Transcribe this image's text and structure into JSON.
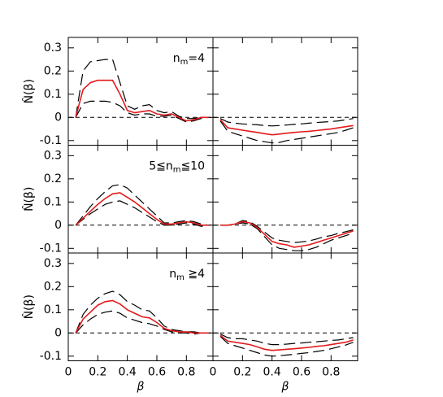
{
  "chart_data": [
    {
      "type": "line",
      "annotation": [
        "n",
        "m",
        "=4"
      ],
      "ylabel": "N̂(β)",
      "x": [
        0.05,
        0.1,
        0.15,
        0.2,
        0.25,
        0.3,
        0.35,
        0.4,
        0.45,
        0.5,
        0.55,
        0.6,
        0.65,
        0.7,
        0.75,
        0.8,
        0.85,
        0.9,
        0.95
      ],
      "series": [
        {
          "color": "#000000",
          "dash": true,
          "values": [
            0,
            0.2,
            0.24,
            0.245,
            0.25,
            0.25,
            0.15,
            0.05,
            0.035,
            0.05,
            0.055,
            0.03,
            0.02,
            0.025,
            0.005,
            -0.005,
            -0.005,
            0,
            0
          ]
        },
        {
          "color": "#000000",
          "dash": true,
          "values": [
            0,
            0.06,
            0.07,
            0.07,
            0.07,
            0.065,
            0.05,
            0.02,
            0.01,
            0.015,
            0.015,
            0.005,
            0.005,
            0.01,
            -0.005,
            -0.02,
            -0.015,
            -0.005,
            0
          ]
        },
        {
          "color": "#e31a1c",
          "dash": false,
          "values": [
            0,
            0.12,
            0.15,
            0.16,
            0.16,
            0.16,
            0.1,
            0.03,
            0.02,
            0.025,
            0.03,
            0.015,
            0.01,
            0.015,
            0,
            -0.015,
            -0.01,
            0,
            0
          ]
        }
      ],
      "hline": 0,
      "xlim": [
        0,
        0.98
      ],
      "ylim": [
        -0.12,
        0.345
      ],
      "xticks": [
        0,
        0.2,
        0.4,
        0.6,
        0.8
      ],
      "yticks": [
        -0.1,
        0,
        0.1,
        0.2,
        0.3
      ],
      "show_xtick_labels": false,
      "show_ytick_labels": true
    },
    {
      "type": "line",
      "x": [
        0.05,
        0.1,
        0.15,
        0.2,
        0.25,
        0.3,
        0.35,
        0.4,
        0.45,
        0.5,
        0.55,
        0.6,
        0.65,
        0.7,
        0.75,
        0.8,
        0.85,
        0.9,
        0.95
      ],
      "series": [
        {
          "color": "#000000",
          "dash": true,
          "values": [
            -0.005,
            -0.02,
            -0.025,
            -0.028,
            -0.03,
            -0.032,
            -0.035,
            -0.037,
            -0.035,
            -0.033,
            -0.03,
            -0.028,
            -0.025,
            -0.022,
            -0.02,
            -0.018,
            -0.015,
            -0.01,
            -0.005
          ]
        },
        {
          "color": "#000000",
          "dash": true,
          "values": [
            -0.015,
            -0.06,
            -0.07,
            -0.08,
            -0.09,
            -0.1,
            -0.105,
            -0.11,
            -0.108,
            -0.1,
            -0.095,
            -0.09,
            -0.085,
            -0.08,
            -0.075,
            -0.07,
            -0.065,
            -0.055,
            -0.045
          ]
        },
        {
          "color": "#e31a1c",
          "dash": false,
          "values": [
            -0.01,
            -0.045,
            -0.05,
            -0.055,
            -0.06,
            -0.065,
            -0.07,
            -0.075,
            -0.072,
            -0.068,
            -0.065,
            -0.062,
            -0.06,
            -0.057,
            -0.053,
            -0.05,
            -0.045,
            -0.04,
            -0.035
          ]
        }
      ],
      "hline": 0,
      "xlim": [
        0,
        0.98
      ],
      "ylim": [
        -0.12,
        0.345
      ],
      "xticks": [
        0,
        0.2,
        0.4,
        0.6,
        0.8
      ],
      "yticks": [
        -0.1,
        0,
        0.1,
        0.2,
        0.3
      ],
      "show_xtick_labels": false,
      "show_ytick_labels": false
    },
    {
      "type": "line",
      "annotation": [
        "5≦n",
        "m",
        "≦10"
      ],
      "ylabel": "N̂(β)",
      "x": [
        0.05,
        0.1,
        0.15,
        0.2,
        0.25,
        0.3,
        0.35,
        0.4,
        0.45,
        0.5,
        0.55,
        0.6,
        0.65,
        0.7,
        0.75,
        0.8,
        0.85,
        0.9,
        0.95
      ],
      "series": [
        {
          "color": "#000000",
          "dash": true,
          "values": [
            0,
            0.04,
            0.08,
            0.115,
            0.145,
            0.17,
            0.175,
            0.16,
            0.13,
            0.1,
            0.07,
            0.04,
            0.01,
            0.01,
            0.015,
            0.02,
            0.015,
            0.005,
            0
          ]
        },
        {
          "color": "#000000",
          "dash": true,
          "values": [
            0,
            0.025,
            0.05,
            0.07,
            0.09,
            0.1,
            0.105,
            0.09,
            0.075,
            0.055,
            0.035,
            0.015,
            0,
            0,
            0.005,
            0.01,
            0.005,
            -0.005,
            0
          ]
        },
        {
          "color": "#e31a1c",
          "dash": false,
          "values": [
            0,
            0.03,
            0.06,
            0.09,
            0.115,
            0.135,
            0.14,
            0.12,
            0.1,
            0.075,
            0.05,
            0.025,
            0.005,
            0.005,
            0.01,
            0.015,
            0.01,
            0,
            0
          ]
        }
      ],
      "hline": 0,
      "xlim": [
        0,
        0.98
      ],
      "ylim": [
        -0.12,
        0.345
      ],
      "xticks": [
        0,
        0.2,
        0.4,
        0.6,
        0.8
      ],
      "yticks": [
        -0.1,
        0,
        0.1,
        0.2,
        0.3
      ],
      "show_xtick_labels": false,
      "show_ytick_labels": true
    },
    {
      "type": "line",
      "x": [
        0.05,
        0.1,
        0.15,
        0.2,
        0.25,
        0.3,
        0.35,
        0.4,
        0.45,
        0.5,
        0.55,
        0.6,
        0.65,
        0.7,
        0.75,
        0.8,
        0.85,
        0.9,
        0.95
      ],
      "series": [
        {
          "color": "#000000",
          "dash": true,
          "values": [
            0,
            0,
            0.005,
            0.02,
            0.015,
            -0.005,
            -0.03,
            -0.055,
            -0.065,
            -0.07,
            -0.075,
            -0.072,
            -0.068,
            -0.06,
            -0.05,
            -0.045,
            -0.035,
            -0.028,
            -0.02
          ]
        },
        {
          "color": "#000000",
          "dash": true,
          "values": [
            0,
            0,
            0.005,
            0.01,
            0.005,
            -0.015,
            -0.05,
            -0.085,
            -0.1,
            -0.105,
            -0.11,
            -0.11,
            -0.105,
            -0.095,
            -0.08,
            -0.065,
            -0.055,
            -0.045,
            -0.035
          ]
        },
        {
          "color": "#e31a1c",
          "dash": false,
          "values": [
            0,
            0,
            0.005,
            0.015,
            0.01,
            -0.01,
            -0.04,
            -0.07,
            -0.08,
            -0.085,
            -0.095,
            -0.09,
            -0.085,
            -0.075,
            -0.065,
            -0.055,
            -0.045,
            -0.035,
            -0.025
          ]
        }
      ],
      "hline": 0,
      "xlim": [
        0,
        0.98
      ],
      "ylim": [
        -0.12,
        0.345
      ],
      "xticks": [
        0,
        0.2,
        0.4,
        0.6,
        0.8
      ],
      "yticks": [
        -0.1,
        0,
        0.1,
        0.2,
        0.3
      ],
      "show_xtick_labels": false,
      "show_ytick_labels": false
    },
    {
      "type": "line",
      "annotation": [
        "n",
        "m",
        " ≧4"
      ],
      "ylabel": "N̂(β)",
      "xlabel": "β",
      "x": [
        0.05,
        0.1,
        0.15,
        0.2,
        0.25,
        0.3,
        0.35,
        0.4,
        0.45,
        0.5,
        0.55,
        0.6,
        0.65,
        0.7,
        0.75,
        0.8,
        0.85,
        0.9,
        0.95
      ],
      "series": [
        {
          "color": "#000000",
          "dash": true,
          "values": [
            0,
            0.08,
            0.12,
            0.15,
            0.17,
            0.18,
            0.165,
            0.135,
            0.12,
            0.1,
            0.095,
            0.065,
            0.03,
            0.015,
            0.01,
            0.005,
            0.005,
            0,
            0
          ]
        },
        {
          "color": "#000000",
          "dash": true,
          "values": [
            0,
            0.035,
            0.06,
            0.08,
            0.09,
            0.095,
            0.085,
            0.065,
            0.055,
            0.045,
            0.04,
            0.03,
            0.015,
            0.005,
            0,
            0,
            -0.005,
            0,
            0
          ]
        },
        {
          "color": "#e31a1c",
          "dash": false,
          "values": [
            0,
            0.06,
            0.09,
            0.12,
            0.135,
            0.14,
            0.125,
            0.1,
            0.085,
            0.07,
            0.065,
            0.045,
            0.02,
            0.01,
            0.005,
            0.005,
            0,
            0,
            0
          ]
        }
      ],
      "hline": 0,
      "xlim": [
        0,
        0.98
      ],
      "ylim": [
        -0.12,
        0.345
      ],
      "xticks": [
        0,
        0.2,
        0.4,
        0.6,
        0.8
      ],
      "yticks": [
        -0.1,
        0,
        0.1,
        0.2,
        0.3
      ],
      "show_xtick_labels": true,
      "show_ytick_labels": true
    },
    {
      "type": "line",
      "xlabel": "β",
      "x": [
        0.05,
        0.1,
        0.15,
        0.2,
        0.25,
        0.3,
        0.35,
        0.4,
        0.45,
        0.5,
        0.55,
        0.6,
        0.65,
        0.7,
        0.75,
        0.8,
        0.85,
        0.9,
        0.95
      ],
      "series": [
        {
          "color": "#000000",
          "dash": true,
          "values": [
            -0.005,
            -0.02,
            -0.025,
            -0.025,
            -0.03,
            -0.035,
            -0.045,
            -0.05,
            -0.05,
            -0.048,
            -0.045,
            -0.043,
            -0.04,
            -0.038,
            -0.035,
            -0.032,
            -0.03,
            -0.025,
            -0.02
          ]
        },
        {
          "color": "#000000",
          "dash": true,
          "values": [
            -0.015,
            -0.045,
            -0.055,
            -0.065,
            -0.075,
            -0.085,
            -0.095,
            -0.1,
            -0.098,
            -0.095,
            -0.092,
            -0.088,
            -0.085,
            -0.08,
            -0.075,
            -0.068,
            -0.06,
            -0.052,
            -0.04
          ]
        },
        {
          "color": "#e31a1c",
          "dash": false,
          "values": [
            -0.01,
            -0.035,
            -0.04,
            -0.045,
            -0.05,
            -0.06,
            -0.07,
            -0.075,
            -0.073,
            -0.07,
            -0.068,
            -0.065,
            -0.062,
            -0.058,
            -0.055,
            -0.05,
            -0.045,
            -0.04,
            -0.03
          ]
        }
      ],
      "hline": 0,
      "xlim": [
        0,
        0.98
      ],
      "ylim": [
        -0.12,
        0.345
      ],
      "xticks": [
        0,
        0.2,
        0.4,
        0.6,
        0.8
      ],
      "yticks": [
        -0.1,
        0,
        0.1,
        0.2,
        0.3
      ],
      "show_xtick_labels": true,
      "show_ytick_labels": false
    }
  ]
}
